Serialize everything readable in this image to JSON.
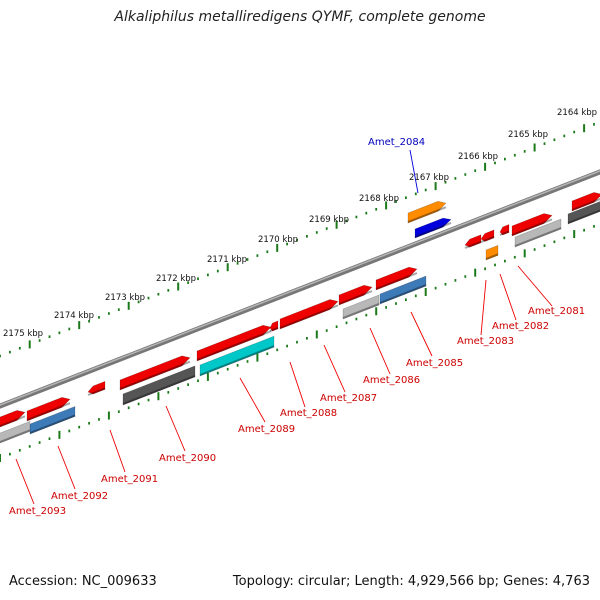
{
  "title": "Alkaliphilus metalliredigens QYMF, complete genome",
  "footer": {
    "accession": "Accession: NC_009633",
    "summary": "Topology: circular; Length: 4,929,566 bp; Genes: 4,763"
  },
  "scale_labels": [
    "2164 kbp",
    "2165 kbp",
    "2166 kbp",
    "2167 kbp",
    "2168 kbp",
    "2169 kbp",
    "2170 kbp",
    "2171 kbp",
    "2172 kbp",
    "2173 kbp",
    "2174 kbp",
    "2175 kbp"
  ],
  "gene_labels": [
    {
      "text": "Amet_2081",
      "color": "#cc0000"
    },
    {
      "text": "Amet_2082",
      "color": "#cc0000"
    },
    {
      "text": "Amet_2083",
      "color": "#cc0000"
    },
    {
      "text": "Amet_2084",
      "color": "#0000bb"
    },
    {
      "text": "Amet_2085",
      "color": "#cc0000"
    },
    {
      "text": "Amet_2086",
      "color": "#cc0000"
    },
    {
      "text": "Amet_2087",
      "color": "#cc0000"
    },
    {
      "text": "Amet_2088",
      "color": "#cc0000"
    },
    {
      "text": "Amet_2089",
      "color": "#cc0000"
    },
    {
      "text": "Amet_2090",
      "color": "#cc0000"
    },
    {
      "text": "Amet_2091",
      "color": "#cc0000"
    },
    {
      "text": "Amet_2092",
      "color": "#cc0000"
    },
    {
      "text": "Amet_2093",
      "color": "#cc0000"
    }
  ],
  "colors": {
    "backbone": "#8a8a8a",
    "scale_ticks": "#1a7a1a",
    "cds_red": "#ee0000",
    "cds_orange": "#ff8c00",
    "cds_blue": "#0000dd",
    "cds_steelblue": "#3d7ab8",
    "cds_cyan": "#00c8c8",
    "cds_darkgray": "#555555",
    "cds_lightgray": "#b8b8b8"
  }
}
